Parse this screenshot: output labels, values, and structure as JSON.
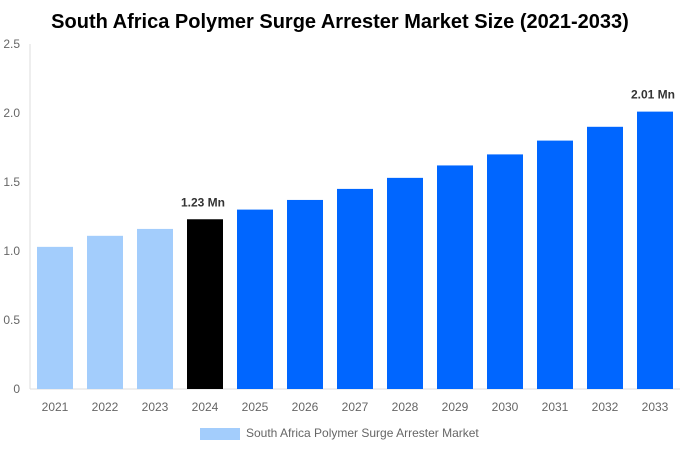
{
  "chart_data": {
    "type": "bar",
    "title": "South Africa Polymer Surge Arrester Market Size (2021-2033)",
    "categories": [
      "2021",
      "2022",
      "2023",
      "2024",
      "2025",
      "2026",
      "2027",
      "2028",
      "2029",
      "2030",
      "2031",
      "2032",
      "2033"
    ],
    "series": [
      {
        "name": "South Africa Polymer Surge Arrester Market",
        "values": [
          1.03,
          1.11,
          1.16,
          1.23,
          1.3,
          1.37,
          1.45,
          1.53,
          1.62,
          1.7,
          1.8,
          1.9,
          2.01
        ]
      }
    ],
    "bar_colors": [
      "#a3cdfc",
      "#a3cdfc",
      "#a3cdfc",
      "#000000",
      "#0066ff",
      "#0066ff",
      "#0066ff",
      "#0066ff",
      "#0066ff",
      "#0066ff",
      "#0066ff",
      "#0066ff",
      "#0066ff"
    ],
    "data_labels": {
      "3": "1.23 Mn",
      "12": "2.01 Mn"
    },
    "yticks": [
      "0",
      "0.5",
      "1.0",
      "1.5",
      "2.0",
      "2.5"
    ],
    "ylim": [
      0,
      2.5
    ],
    "xlabel": "",
    "ylabel": "",
    "grid": false,
    "legend_position": "bottom",
    "legend_color": "#a3cdfc"
  }
}
